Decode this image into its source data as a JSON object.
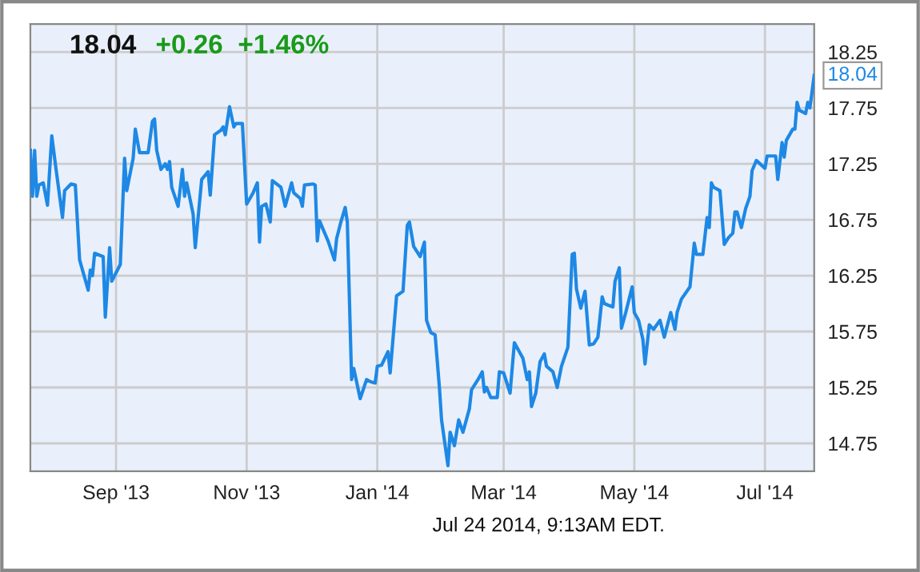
{
  "chart_data": {
    "type": "line",
    "title": "18.04",
    "subtitle": "+0.26  +1.46%",
    "annotations": [
      {
        "text": "18.04",
        "x": "2014-07-24",
        "y": 18.04
      },
      "Jul 24 2014, 9:13AM EDT."
    ],
    "x": [
      "2013-07-23",
      "2013-07-24",
      "2013-07-25",
      "2013-07-26",
      "2013-07-27",
      "2013-07-29",
      "2013-07-31",
      "2013-08-02",
      "2013-08-04",
      "2013-08-07",
      "2013-08-08",
      "2013-08-11",
      "2013-08-13",
      "2013-08-15",
      "2013-08-19",
      "2013-08-20",
      "2013-08-21",
      "2013-08-22",
      "2013-08-26",
      "2013-08-27",
      "2013-08-29",
      "2013-08-30",
      "2013-09-03",
      "2013-09-05",
      "2013-09-06",
      "2013-09-09",
      "2013-09-10",
      "2013-09-12",
      "2013-09-16",
      "2013-09-18",
      "2013-09-19",
      "2013-09-20",
      "2013-09-22",
      "2013-09-24",
      "2013-09-25",
      "2013-09-26",
      "2013-09-27",
      "2013-09-30",
      "2013-10-02",
      "2013-10-03",
      "2013-10-04",
      "2013-10-07",
      "2013-10-08",
      "2013-10-11",
      "2013-10-14",
      "2013-10-15",
      "2013-10-17",
      "2013-10-20",
      "2013-10-21",
      "2013-10-22",
      "2013-10-24",
      "2013-10-26",
      "2013-10-27",
      "2013-10-30",
      "2013-11-01",
      "2013-11-04",
      "2013-11-06",
      "2013-11-07",
      "2013-11-08",
      "2013-11-10",
      "2013-11-12",
      "2013-11-13",
      "2013-11-17",
      "2013-11-19",
      "2013-11-22",
      "2013-11-23",
      "2013-11-26",
      "2013-11-27",
      "2013-11-28",
      "2013-12-02",
      "2013-12-03",
      "2013-12-04",
      "2013-12-05",
      "2013-12-09",
      "2013-12-12",
      "2013-12-13",
      "2013-12-15",
      "2013-12-17",
      "2013-12-18",
      "2013-12-20",
      "2013-12-21",
      "2013-12-24",
      "2013-12-27",
      "2013-12-29",
      "2013-12-31",
      "2014-01-01",
      "2014-01-03",
      "2014-01-06",
      "2014-01-07",
      "2014-01-10",
      "2014-01-13",
      "2014-01-15",
      "2014-01-16",
      "2014-01-18",
      "2014-01-21",
      "2014-01-23",
      "2014-01-24",
      "2014-01-26",
      "2014-01-28",
      "2014-01-30",
      "2014-01-31",
      "2014-02-03",
      "2014-02-04",
      "2014-02-06",
      "2014-02-08",
      "2014-02-10",
      "2014-02-12",
      "2014-02-13",
      "2014-02-14",
      "2014-02-17",
      "2014-02-19",
      "2014-02-20",
      "2014-02-21",
      "2014-02-23",
      "2014-02-26",
      "2014-02-27",
      "2014-03-01",
      "2014-03-04",
      "2014-03-06",
      "2014-03-10",
      "2014-03-12",
      "2014-03-13",
      "2014-03-14",
      "2014-03-16",
      "2014-03-18",
      "2014-03-20",
      "2014-03-21",
      "2014-03-24",
      "2014-03-26",
      "2014-03-28",
      "2014-03-31",
      "2014-04-02",
      "2014-04-03",
      "2014-04-04",
      "2014-04-06",
      "2014-04-08",
      "2014-04-10",
      "2014-04-12",
      "2014-04-14",
      "2014-04-16",
      "2014-04-17",
      "2014-04-21",
      "2014-04-22",
      "2014-04-24",
      "2014-04-25",
      "2014-04-27",
      "2014-04-30",
      "2014-05-01",
      "2014-05-03",
      "2014-05-05",
      "2014-05-06",
      "2014-05-08",
      "2014-05-10",
      "2014-05-13",
      "2014-05-15",
      "2014-05-18",
      "2014-05-20",
      "2014-05-21",
      "2014-05-23",
      "2014-05-27",
      "2014-05-29",
      "2014-05-30",
      "2014-06-02",
      "2014-06-04",
      "2014-06-05",
      "2014-06-06",
      "2014-06-07",
      "2014-06-10",
      "2014-06-12",
      "2014-06-14",
      "2014-06-16",
      "2014-06-17",
      "2014-06-18",
      "2014-06-20",
      "2014-06-22",
      "2014-06-24",
      "2014-06-25",
      "2014-06-27",
      "2014-07-01",
      "2014-07-02",
      "2014-07-06",
      "2014-07-07",
      "2014-07-09",
      "2014-07-10",
      "2014-07-11",
      "2014-07-14",
      "2014-07-15",
      "2014-07-16",
      "2014-07-17",
      "2014-07-20",
      "2014-07-21",
      "2014-07-22",
      "2014-07-24"
    ],
    "series": [
      {
        "color": "#1e88e5",
        "values": [
          17.37,
          16.96,
          17.37,
          16.96,
          17.06,
          17.08,
          16.88,
          17.5,
          17.2,
          16.77,
          17.01,
          17.07,
          17.06,
          16.39,
          16.12,
          16.3,
          16.25,
          16.45,
          16.42,
          15.88,
          16.5,
          16.2,
          16.35,
          17.3,
          17.01,
          17.3,
          17.56,
          17.35,
          17.35,
          17.63,
          17.65,
          17.37,
          17.2,
          17.25,
          17.2,
          17.27,
          17.04,
          16.87,
          17.2,
          16.96,
          17.08,
          16.8,
          16.5,
          17.11,
          17.18,
          16.97,
          17.51,
          17.55,
          17.58,
          17.51,
          17.76,
          17.58,
          17.61,
          17.61,
          16.89,
          16.99,
          17.08,
          16.55,
          16.87,
          16.89,
          16.73,
          17.1,
          17.04,
          16.87,
          17.08,
          16.99,
          16.94,
          16.87,
          17.06,
          17.07,
          17.06,
          16.56,
          16.74,
          16.56,
          16.39,
          16.58,
          16.73,
          16.86,
          16.73,
          15.32,
          15.42,
          15.15,
          15.32,
          15.3,
          15.29,
          15.44,
          15.45,
          15.57,
          15.38,
          16.07,
          16.11,
          16.7,
          16.73,
          16.51,
          16.42,
          16.55,
          15.85,
          15.74,
          15.72,
          15.25,
          14.96,
          14.55,
          14.85,
          14.73,
          14.96,
          14.85,
          14.99,
          15.06,
          15.23,
          15.32,
          15.39,
          15.21,
          15.25,
          15.16,
          15.16,
          15.39,
          15.38,
          15.2,
          15.65,
          15.51,
          15.32,
          15.39,
          15.08,
          15.2,
          15.48,
          15.55,
          15.44,
          15.39,
          15.25,
          15.44,
          15.61,
          16.44,
          16.45,
          16.13,
          15.96,
          16.11,
          15.63,
          15.64,
          15.7,
          16.06,
          16.0,
          15.97,
          16.2,
          16.32,
          15.78,
          15.92,
          16.15,
          15.92,
          15.85,
          15.68,
          15.46,
          15.81,
          15.77,
          15.85,
          15.7,
          15.92,
          15.77,
          15.92,
          16.04,
          16.15,
          16.54,
          16.44,
          16.44,
          16.77,
          16.68,
          17.08,
          17.04,
          17.01,
          16.53,
          16.59,
          16.63,
          16.82,
          16.82,
          16.68,
          16.85,
          16.96,
          17.19,
          17.28,
          17.21,
          17.32,
          17.32,
          17.11,
          17.44,
          17.31,
          17.46,
          17.56,
          17.56,
          17.8,
          17.73,
          17.7,
          17.8,
          17.75,
          18.04
        ]
      }
    ],
    "xlim": [
      "2013-07-23",
      "2014-07-24"
    ],
    "xticks": [
      {
        "value": "2013-09-01",
        "label": "Sep '13"
      },
      {
        "value": "2013-11-01",
        "label": "Nov '13"
      },
      {
        "value": "2014-01-01",
        "label": "Jan '14"
      },
      {
        "value": "2014-03-01",
        "label": "Mar '14"
      },
      {
        "value": "2014-05-01",
        "label": "May '14"
      },
      {
        "value": "2014-07-01",
        "label": "Jul '14"
      }
    ],
    "ylim": [
      14.5,
      18.5
    ],
    "yticks": [
      14.75,
      15.25,
      15.75,
      16.25,
      16.75,
      17.25,
      17.75,
      18.25
    ],
    "grid": true,
    "marker": "none",
    "line_style": "solid"
  }
}
